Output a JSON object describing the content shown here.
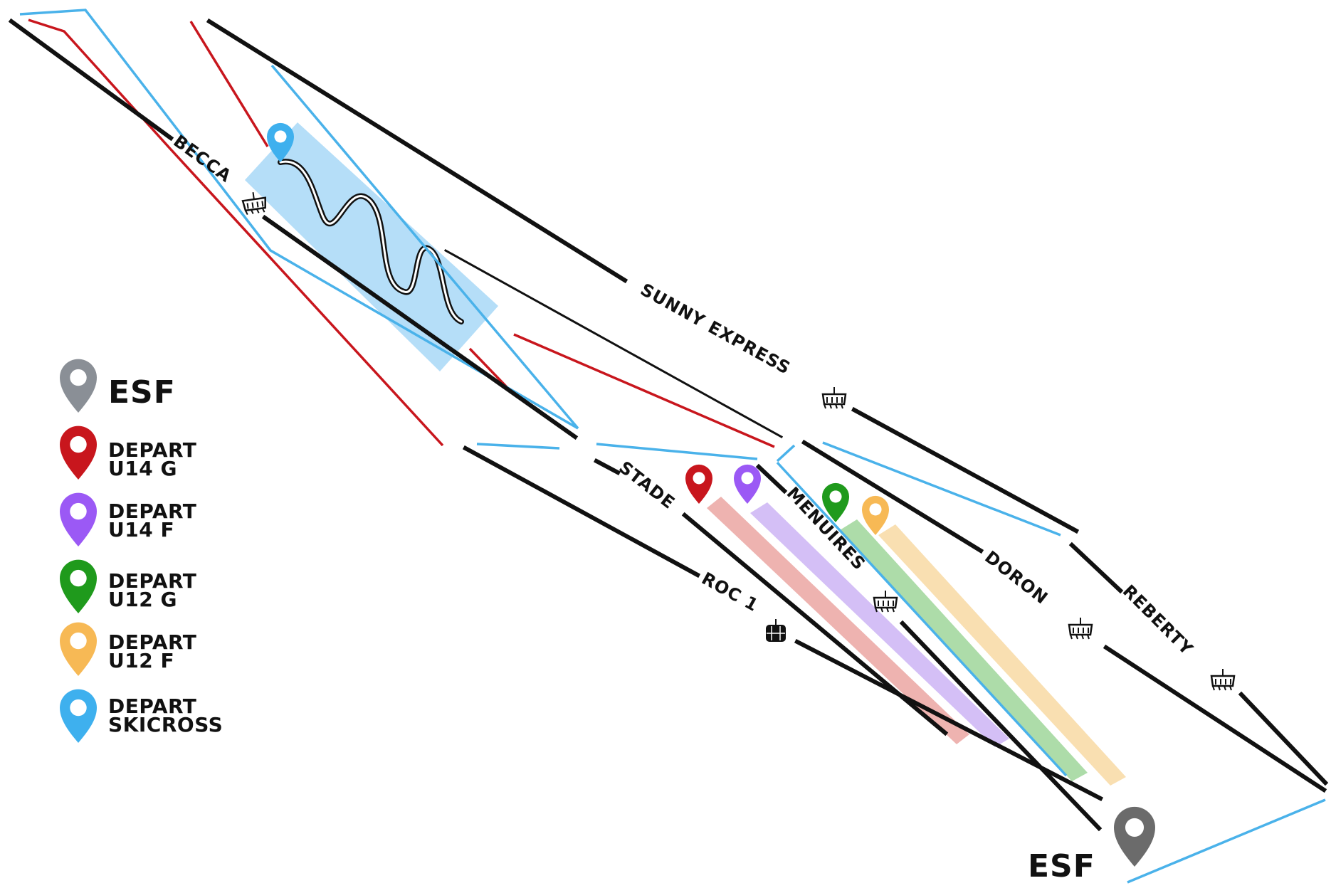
{
  "lifts": [
    {
      "id": "becca",
      "label": "BECCA"
    },
    {
      "id": "sunny-express",
      "label": "SUNNY EXPRESS"
    },
    {
      "id": "stade",
      "label": "STADE"
    },
    {
      "id": "menuires",
      "label": "MENUIRES"
    },
    {
      "id": "roc1",
      "label": "ROC 1"
    },
    {
      "id": "doron",
      "label": "DORON"
    },
    {
      "id": "reberty",
      "label": "REBERTY"
    }
  ],
  "esf_marker_label": "ESF",
  "legend": {
    "esf": {
      "label": "ESF",
      "color": "#8a8f96"
    },
    "items": [
      {
        "line1": "DEPART",
        "line2": "U14 G",
        "color": "#c8161d"
      },
      {
        "line1": "DEPART",
        "line2": "U14 F",
        "color": "#9b59f5"
      },
      {
        "line1": "DEPART",
        "line2": "U12 G",
        "color": "#1f9a1c"
      },
      {
        "line1": "DEPART",
        "line2": "U12 F",
        "color": "#f7b955"
      },
      {
        "line1": "DEPART",
        "line2": "SKICROSS",
        "color": "#3eb0ee"
      }
    ]
  },
  "colors": {
    "lift": "#111111",
    "red_run": "#c8161d",
    "blue_run": "#4ab2ea",
    "skicross_zone": "#8ecdf5",
    "u14g_zone": "#e89a96",
    "u14f_zone": "#cdb4f4",
    "u12g_zone": "#9fd69a",
    "u12f_zone": "#f8dba8",
    "esf_marker": "#6b6b6b"
  }
}
